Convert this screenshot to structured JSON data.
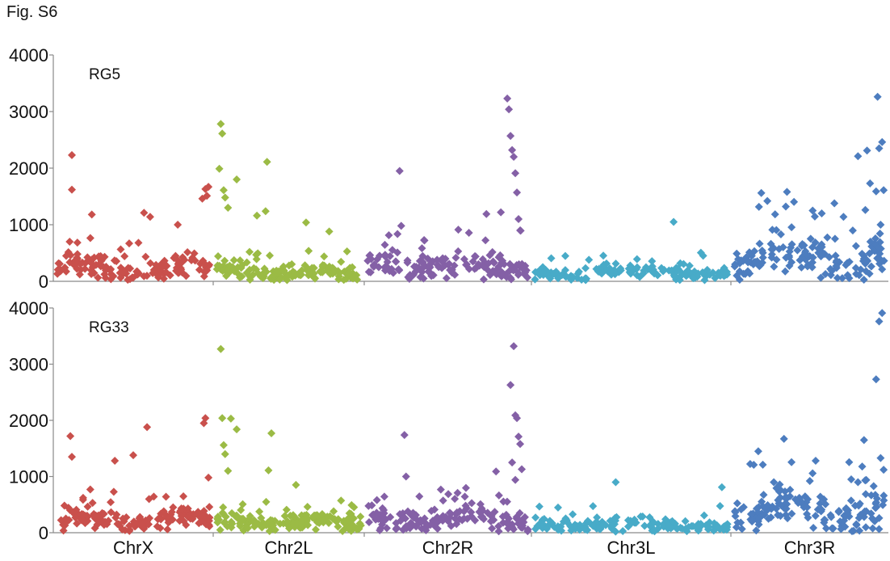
{
  "figure_label": "Fig. S6",
  "chart_data": {
    "type": "scatter",
    "marker": "diamond",
    "x_categories": [
      "ChrX",
      "Chr2L",
      "Chr2R",
      "Chr3L",
      "Chr3R"
    ],
    "category_colors": {
      "ChrX": "#c9504c",
      "Chr2L": "#9bbb45",
      "Chr2R": "#8460a6",
      "Chr3L": "#48abc8",
      "Chr3R": "#4d7dbf"
    },
    "category_extent_fraction": [
      [
        0.0,
        0.19
      ],
      [
        0.19,
        0.4
      ],
      [
        0.4,
        0.6
      ],
      [
        0.6,
        0.81
      ],
      [
        0.81,
        1.0
      ]
    ],
    "panels": [
      {
        "label": "RG5",
        "yticks": [
          "0",
          "1000",
          "2000",
          "3000",
          "4000"
        ],
        "ylim": [
          0,
          4000
        ],
        "series": [
          {
            "category": "ChrX",
            "baseline_mean": 240,
            "outliers": [
              [
                0.1,
                2230
              ],
              [
                0.1,
                1620
              ],
              [
                0.23,
                1180
              ],
              [
                0.57,
                1210
              ],
              [
                0.61,
                1140
              ],
              [
                0.79,
                1000
              ],
              [
                0.95,
                1460
              ],
              [
                0.97,
                1630
              ],
              [
                0.99,
                1670
              ],
              [
                0.98,
                1510
              ]
            ]
          },
          {
            "category": "Chr2L",
            "baseline_mean": 160,
            "outliers": [
              [
                0.02,
                1990
              ],
              [
                0.03,
                2780
              ],
              [
                0.04,
                2610
              ],
              [
                0.05,
                1610
              ],
              [
                0.06,
                1480
              ],
              [
                0.08,
                1300
              ],
              [
                0.14,
                1800
              ],
              [
                0.28,
                1160
              ],
              [
                0.34,
                1240
              ],
              [
                0.35,
                2110
              ],
              [
                0.62,
                1040
              ],
              [
                0.78,
                880
              ]
            ]
          },
          {
            "category": "Chr2R",
            "baseline_mean": 270,
            "outliers": [
              [
                0.2,
                1950
              ],
              [
                0.21,
                980
              ],
              [
                0.83,
                1220
              ],
              [
                0.87,
                3230
              ],
              [
                0.88,
                3040
              ],
              [
                0.89,
                2570
              ],
              [
                0.9,
                2320
              ],
              [
                0.91,
                2200
              ],
              [
                0.92,
                1910
              ],
              [
                0.93,
                1570
              ],
              [
                0.94,
                1100
              ],
              [
                0.95,
                900
              ],
              [
                0.74,
                1190
              ]
            ]
          },
          {
            "category": "Chr3L",
            "baseline_mean": 150,
            "outliers": [
              [
                0.72,
                1050
              ]
            ]
          },
          {
            "category": "Chr3R",
            "baseline_mean": 420,
            "outliers": [
              [
                0.18,
                1560
              ],
              [
                0.22,
                1420
              ],
              [
                0.35,
                1580
              ],
              [
                0.52,
                1250
              ],
              [
                0.58,
                1200
              ],
              [
                0.82,
                2210
              ],
              [
                0.88,
                2310
              ],
              [
                0.9,
                1730
              ],
              [
                0.95,
                3260
              ],
              [
                0.96,
                2350
              ],
              [
                0.98,
                2460
              ],
              [
                0.99,
                1610
              ],
              [
                0.94,
                1590
              ],
              [
                0.97,
                1000
              ]
            ]
          }
        ]
      },
      {
        "label": "RG33",
        "yticks": [
          "0",
          "1000",
          "2000",
          "3000",
          "4000"
        ],
        "ylim": [
          0,
          4000
        ],
        "series": [
          {
            "category": "ChrX",
            "baseline_mean": 220,
            "outliers": [
              [
                0.09,
                1720
              ],
              [
                0.1,
                1350
              ],
              [
                0.38,
                1280
              ],
              [
                0.5,
                1380
              ],
              [
                0.59,
                1880
              ],
              [
                0.22,
                770
              ],
              [
                0.96,
                1950
              ],
              [
                0.97,
                2040
              ],
              [
                0.99,
                980
              ]
            ]
          },
          {
            "category": "Chr2L",
            "baseline_mean": 170,
            "outliers": [
              [
                0.03,
                3270
              ],
              [
                0.04,
                2040
              ],
              [
                0.05,
                1560
              ],
              [
                0.06,
                1400
              ],
              [
                0.08,
                1100
              ],
              [
                0.1,
                2030
              ],
              [
                0.14,
                1840
              ],
              [
                0.38,
                1770
              ],
              [
                0.36,
                1110
              ],
              [
                0.55,
                850
              ]
            ]
          },
          {
            "category": "Chr2R",
            "baseline_mean": 250,
            "outliers": [
              [
                0.23,
                1740
              ],
              [
                0.24,
                1000
              ],
              [
                0.8,
                1090
              ],
              [
                0.89,
                2630
              ],
              [
                0.9,
                1250
              ],
              [
                0.91,
                3320
              ],
              [
                0.92,
                2090
              ],
              [
                0.93,
                2040
              ],
              [
                0.94,
                1710
              ],
              [
                0.95,
                1580
              ],
              [
                0.96,
                1130
              ],
              [
                0.92,
                940
              ]
            ]
          },
          {
            "category": "Chr3L",
            "baseline_mean": 140,
            "outliers": [
              [
                0.42,
                900
              ],
              [
                0.97,
                810
              ]
            ]
          },
          {
            "category": "Chr3R",
            "baseline_mean": 380,
            "outliers": [
              [
                0.16,
                1450
              ],
              [
                0.19,
                1210
              ],
              [
                0.33,
                1670
              ],
              [
                0.54,
                1280
              ],
              [
                0.82,
                900
              ],
              [
                0.86,
                1650
              ],
              [
                0.94,
                2730
              ],
              [
                0.96,
                3760
              ],
              [
                0.98,
                3910
              ],
              [
                0.97,
                1330
              ],
              [
                0.99,
                1120
              ]
            ]
          }
        ]
      }
    ]
  }
}
